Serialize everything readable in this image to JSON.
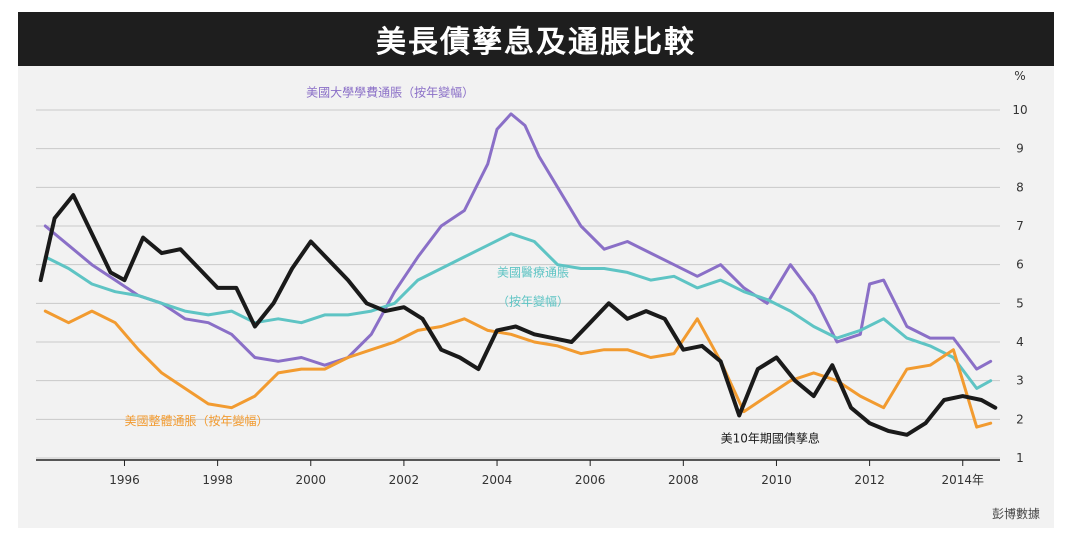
{
  "header": {
    "title": "美長債孳息及通脹比較"
  },
  "source": "彭博數據",
  "chart_data": {
    "type": "line",
    "yunit": "%",
    "ylim": [
      1,
      10
    ],
    "yticks": [
      1,
      2,
      3,
      4,
      5,
      6,
      7,
      8,
      9,
      10
    ],
    "xlim": [
      1994.1,
      2014.8
    ],
    "xticks": [
      {
        "x": 1996,
        "label": "1996"
      },
      {
        "x": 1998,
        "label": "1998"
      },
      {
        "x": 2000,
        "label": "2000"
      },
      {
        "x": 2002,
        "label": "2002"
      },
      {
        "x": 2004,
        "label": "2004"
      },
      {
        "x": 2006,
        "label": "2006"
      },
      {
        "x": 2008,
        "label": "2008"
      },
      {
        "x": 2010,
        "label": "2010"
      },
      {
        "x": 2012,
        "label": "2012"
      },
      {
        "x": 2014,
        "label": "2014年"
      }
    ],
    "grid": true,
    "series": [
      {
        "name": "美國大學學費通脹（按年變幅）",
        "color": "#8a6fc7",
        "x": [
          1994.3,
          1994.8,
          1995.3,
          1995.8,
          1996.3,
          1996.8,
          1997.3,
          1997.8,
          1998.3,
          1998.8,
          1999.3,
          1999.8,
          2000.3,
          2000.8,
          2001.3,
          2001.8,
          2002.3,
          2002.8,
          2003.3,
          2003.8,
          2004.0,
          2004.3,
          2004.6,
          2004.9,
          2005.3,
          2005.8,
          2006.3,
          2006.8,
          2007.3,
          2007.8,
          2008.3,
          2008.8,
          2009.3,
          2009.8,
          2010.3,
          2010.8,
          2011.3,
          2011.8,
          2012.0,
          2012.3,
          2012.8,
          2013.3,
          2013.8,
          2014.3,
          2014.6
        ],
        "y": [
          7.0,
          6.5,
          6.0,
          5.6,
          5.2,
          5.0,
          4.6,
          4.5,
          4.2,
          3.6,
          3.5,
          3.6,
          3.4,
          3.6,
          4.2,
          5.3,
          6.2,
          7.0,
          7.4,
          8.6,
          9.5,
          9.9,
          9.6,
          8.8,
          8.0,
          7.0,
          6.4,
          6.6,
          6.3,
          6.0,
          5.7,
          6.0,
          5.4,
          5.0,
          6.0,
          5.2,
          4.0,
          4.2,
          5.5,
          5.6,
          4.4,
          4.1,
          4.1,
          3.3,
          3.5
        ]
      },
      {
        "name": "美國醫療通脹（按年變幅）",
        "color": "#5ec4c4",
        "x": [
          1994.3,
          1994.8,
          1995.3,
          1995.8,
          1996.3,
          1996.8,
          1997.3,
          1997.8,
          1998.3,
          1998.8,
          1999.3,
          1999.8,
          2000.3,
          2000.8,
          2001.3,
          2001.8,
          2002.3,
          2002.8,
          2003.3,
          2003.8,
          2004.3,
          2004.8,
          2005.3,
          2005.8,
          2006.3,
          2006.8,
          2007.3,
          2007.8,
          2008.3,
          2008.8,
          2009.3,
          2009.8,
          2010.3,
          2010.8,
          2011.3,
          2011.8,
          2012.3,
          2012.8,
          2013.3,
          2013.8,
          2014.3,
          2014.6
        ],
        "y": [
          6.2,
          5.9,
          5.5,
          5.3,
          5.2,
          5.0,
          4.8,
          4.7,
          4.8,
          4.5,
          4.6,
          4.5,
          4.7,
          4.7,
          4.8,
          5.0,
          5.6,
          5.9,
          6.2,
          6.5,
          6.8,
          6.6,
          6.0,
          5.9,
          5.9,
          5.8,
          5.6,
          5.7,
          5.4,
          5.6,
          5.3,
          5.1,
          4.8,
          4.4,
          4.1,
          4.3,
          4.6,
          4.1,
          3.9,
          3.6,
          2.8,
          3.0
        ]
      },
      {
        "name": "美國整體通脹（按年變幅）",
        "color": "#f29b30",
        "x": [
          1994.3,
          1994.8,
          1995.3,
          1995.8,
          1996.3,
          1996.8,
          1997.3,
          1997.8,
          1998.3,
          1998.8,
          1999.3,
          1999.8,
          2000.3,
          2000.8,
          2001.3,
          2001.8,
          2002.3,
          2002.8,
          2003.3,
          2003.8,
          2004.3,
          2004.8,
          2005.3,
          2005.8,
          2006.3,
          2006.8,
          2007.3,
          2007.8,
          2008.3,
          2008.8,
          2009.3,
          2009.8,
          2010.3,
          2010.8,
          2011.3,
          2011.8,
          2012.3,
          2012.8,
          2013.3,
          2013.8,
          2014.3,
          2014.6
        ],
        "y": [
          4.8,
          4.5,
          4.8,
          4.5,
          3.8,
          3.2,
          2.8,
          2.4,
          2.3,
          2.6,
          3.2,
          3.3,
          3.3,
          3.6,
          3.8,
          4.0,
          4.3,
          4.4,
          4.6,
          4.3,
          4.2,
          4.0,
          3.9,
          3.7,
          3.8,
          3.8,
          3.6,
          3.7,
          4.6,
          3.5,
          2.2,
          2.6,
          3.0,
          3.2,
          3.0,
          2.6,
          2.3,
          3.3,
          3.4,
          3.8,
          1.8,
          1.9
        ]
      },
      {
        "name": "美10年期國債孳息",
        "color": "#1a1a1a",
        "x": [
          1994.2,
          1994.5,
          1994.9,
          1995.3,
          1995.7,
          1996.0,
          1996.4,
          1996.8,
          1997.2,
          1997.6,
          1998.0,
          1998.4,
          1998.8,
          1999.2,
          1999.6,
          2000.0,
          2000.4,
          2000.8,
          2001.2,
          2001.6,
          2002.0,
          2002.4,
          2002.8,
          2003.2,
          2003.6,
          2004.0,
          2004.4,
          2004.8,
          2005.2,
          2005.6,
          2006.0,
          2006.4,
          2006.8,
          2007.2,
          2007.6,
          2008.0,
          2008.4,
          2008.8,
          2009.2,
          2009.6,
          2010.0,
          2010.4,
          2010.8,
          2011.2,
          2011.6,
          2012.0,
          2012.4,
          2012.8,
          2013.2,
          2013.6,
          2014.0,
          2014.4,
          2014.7
        ],
        "y": [
          5.6,
          7.2,
          7.8,
          6.8,
          5.8,
          5.6,
          6.7,
          6.3,
          6.4,
          5.9,
          5.4,
          5.4,
          4.4,
          5.0,
          5.9,
          6.6,
          6.1,
          5.6,
          5.0,
          4.8,
          4.9,
          4.6,
          3.8,
          3.6,
          3.3,
          4.3,
          4.4,
          4.2,
          4.1,
          4.0,
          4.5,
          5.0,
          4.6,
          4.8,
          4.6,
          3.8,
          3.9,
          3.5,
          2.1,
          3.3,
          3.6,
          3.0,
          2.6,
          3.4,
          2.3,
          1.9,
          1.7,
          1.6,
          1.9,
          2.5,
          2.6,
          2.5,
          2.3
        ]
      }
    ],
    "annotations": [
      {
        "text": "美國大學學費通脹（按年變幅）",
        "x": 1999.9,
        "y": 10.35,
        "color": "#8a6fc7"
      },
      {
        "text": "美國醫療通脹",
        "x": 2004.0,
        "y": 5.7,
        "color": "#5ec4c4"
      },
      {
        "text": "（按年變幅）",
        "x": 2004.0,
        "y": 4.95,
        "color": "#5ec4c4"
      },
      {
        "text": "美國整體通脹（按年變幅）",
        "x": 1996.0,
        "y": 1.85,
        "color": "#f29b30"
      },
      {
        "text": "美10年期國債孳息",
        "x": 2008.8,
        "y": 1.4,
        "color": "#1a1a1a"
      }
    ]
  }
}
